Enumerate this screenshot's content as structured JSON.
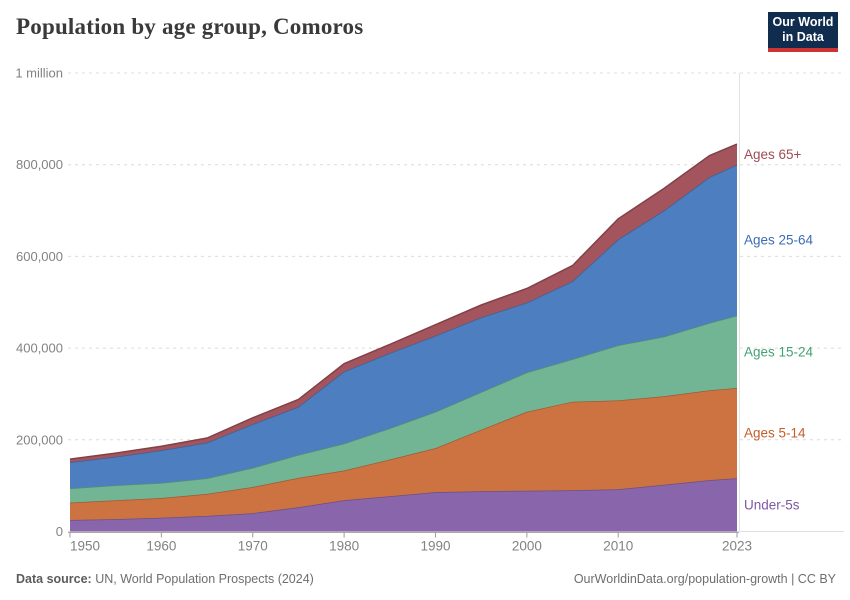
{
  "header": {
    "title": "Population by age group, Comoros"
  },
  "logo": {
    "line1": "Our World",
    "line2": "in Data",
    "bg": "#102d50",
    "accent": "#cc3434"
  },
  "chart_data": {
    "type": "area",
    "stacked": true,
    "title": "Population by age group, Comoros",
    "xlabel": "",
    "ylabel": "",
    "xlim": [
      1950,
      2023
    ],
    "ylim": [
      0,
      1000000
    ],
    "grid": "dashed-horizontal",
    "legend_position": "right-edge-labels",
    "x": [
      1950,
      1955,
      1960,
      1965,
      1970,
      1975,
      1980,
      1985,
      1990,
      1995,
      2000,
      2005,
      2010,
      2015,
      2020,
      2023
    ],
    "series": [
      {
        "name": "Under-5s",
        "color": "#8965ab",
        "label_color": "#7d58a5",
        "values": [
          25000,
          27000,
          30000,
          34000,
          40000,
          53000,
          68000,
          77000,
          86000,
          88000,
          89000,
          90000,
          92000,
          102000,
          112000,
          116000
        ]
      },
      {
        "name": "Ages 5-14",
        "color": "#cd7342",
        "label_color": "#c55d2d",
        "values": [
          38000,
          41000,
          43000,
          48000,
          57000,
          64000,
          65000,
          80000,
          96000,
          134000,
          172000,
          193000,
          194000,
          193000,
          196000,
          197000
        ]
      },
      {
        "name": "Ages 15-24",
        "color": "#72b594",
        "label_color": "#45a077",
        "values": [
          31000,
          33000,
          33000,
          34000,
          42000,
          50000,
          59000,
          68000,
          79000,
          82000,
          86000,
          93000,
          120000,
          130000,
          147000,
          158000
        ]
      },
      {
        "name": "Ages 25-64",
        "color": "#4c7ec0",
        "label_color": "#3c6cb4",
        "values": [
          57000,
          62000,
          71000,
          78000,
          95000,
          105000,
          157000,
          164000,
          166000,
          163000,
          152000,
          170000,
          231000,
          275000,
          318000,
          329000
        ]
      },
      {
        "name": "Ages 65+",
        "color": "#a4545c",
        "label_color": "#9d4e54",
        "values": [
          7000,
          8000,
          9000,
          10000,
          14000,
          16000,
          17000,
          19000,
          24000,
          27000,
          31000,
          34000,
          45000,
          48000,
          47000,
          45000
        ]
      }
    ],
    "y_ticks": [
      {
        "value": 0,
        "label": "0"
      },
      {
        "value": 200000,
        "label": "200,000"
      },
      {
        "value": 400000,
        "label": "400,000"
      },
      {
        "value": 600000,
        "label": "600,000"
      },
      {
        "value": 800000,
        "label": "800,000"
      },
      {
        "value": 1000000,
        "label": "1 million"
      }
    ],
    "x_ticks": [
      1950,
      1960,
      1970,
      1980,
      1990,
      2000,
      2010,
      2023
    ]
  },
  "footer": {
    "source_prefix": "Data source:",
    "source": " UN, World Population Prospects (2024)",
    "credit": "OurWorldinData.org/population-growth | CC BY"
  }
}
